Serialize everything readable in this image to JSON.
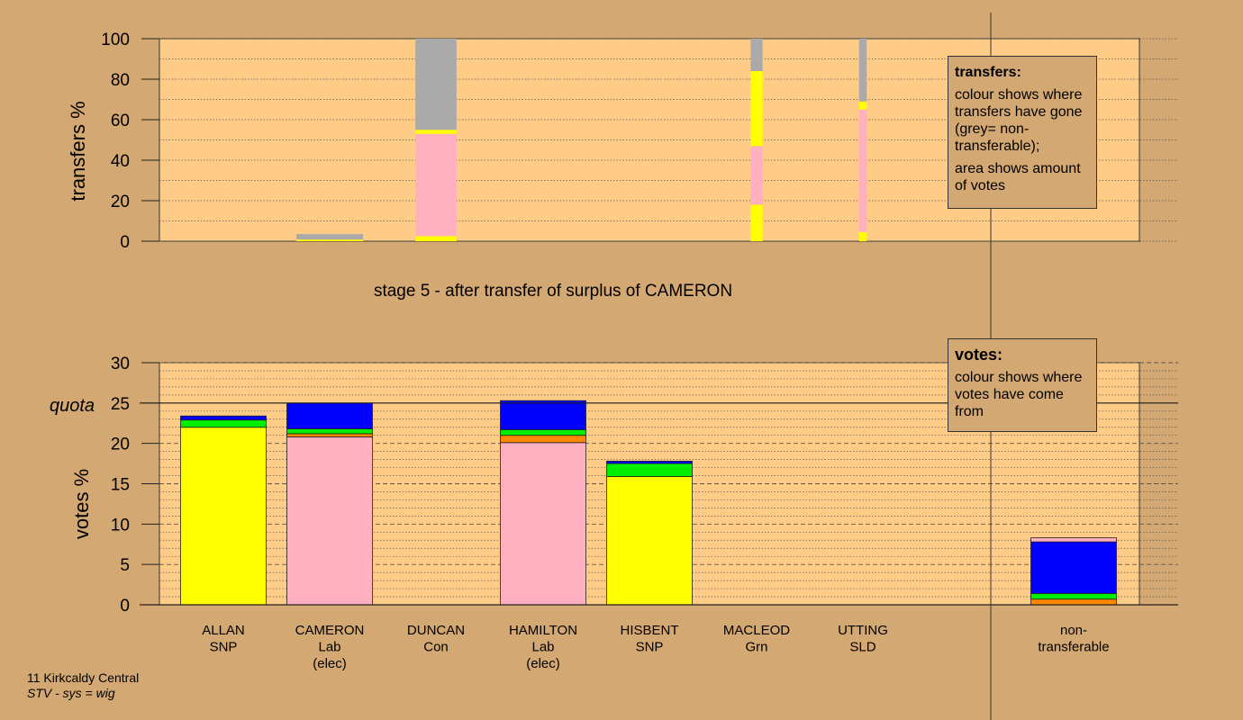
{
  "chart_data": [
    {
      "type": "bar",
      "subtype": "stacked",
      "ylabel": "transfers %",
      "ylim": [
        0,
        100
      ],
      "yticks": [
        0,
        20,
        40,
        60,
        80,
        100
      ],
      "categories": [
        "ALLAN SNP",
        "CAMERON Lab (elec)",
        "DUNCAN Con",
        "HAMILTON Lab (elec)",
        "HISBENT SNP",
        "MACLEOD Grn",
        "UTTING SLD"
      ],
      "segment_colors": {
        "yellow": "#ffff00",
        "pink": "#ffb0c0",
        "grey": "#aaaaaa"
      },
      "stacks": [
        [],
        [
          {
            "color": "#ffff00",
            "from": 0,
            "to": 0.8
          },
          {
            "color": "#aaaaaa",
            "from": 0.8,
            "to": 3.5
          }
        ],
        [
          {
            "color": "#ffff00",
            "from": 0,
            "to": 2.5
          },
          {
            "color": "#ffb0c0",
            "from": 2.5,
            "to": 53
          },
          {
            "color": "#ffff00",
            "from": 53,
            "to": 55
          },
          {
            "color": "#aaaaaa",
            "from": 55,
            "to": 100
          }
        ],
        [],
        [],
        [
          {
            "color": "#ffff00",
            "from": 0,
            "to": 18
          },
          {
            "color": "#ffb0c0",
            "from": 18,
            "to": 47
          },
          {
            "color": "#ffff00",
            "from": 47,
            "to": 84
          },
          {
            "color": "#aaaaaa",
            "from": 84,
            "to": 100
          }
        ],
        [
          {
            "color": "#ffff00",
            "from": 0,
            "to": 4.5
          },
          {
            "color": "#ffb0c0",
            "from": 4.5,
            "to": 65
          },
          {
            "color": "#ffff00",
            "from": 65,
            "to": 69
          },
          {
            "color": "#aaaaaa",
            "from": 69,
            "to": 100
          }
        ]
      ],
      "bar_width_relative": [
        0,
        0.78,
        0.48,
        0,
        0,
        0.14,
        0.09
      ]
    },
    {
      "type": "bar",
      "subtype": "stacked",
      "title": "stage 5 - after transfer of surplus of CAMERON",
      "ylabel": "votes %",
      "ylim": [
        0,
        30
      ],
      "yticks": [
        0,
        5,
        10,
        15,
        20,
        25,
        30
      ],
      "quota": 25,
      "quota_label": "quota",
      "categories": [
        "ALLAN SNP",
        "CAMERON Lab (elec)",
        "DUNCAN Con",
        "HAMILTON Lab (elec)",
        "HISBENT SNP",
        "MACLEOD Grn",
        "UTTING SLD",
        "non-transferable"
      ],
      "stacks": [
        [
          {
            "color": "#ffff00",
            "from": 0,
            "to": 22
          },
          {
            "color": "#00ee00",
            "from": 22,
            "to": 22.9
          },
          {
            "color": "#0000ff",
            "from": 22.9,
            "to": 23.4
          }
        ],
        [
          {
            "color": "#ffb0c0",
            "from": 0,
            "to": 20.8
          },
          {
            "color": "#ff8800",
            "from": 20.8,
            "to": 21.2
          },
          {
            "color": "#00ee00",
            "from": 21.2,
            "to": 21.8
          },
          {
            "color": "#0000ff",
            "from": 21.8,
            "to": 25
          }
        ],
        [],
        [
          {
            "color": "#ffb0c0",
            "from": 0,
            "to": 20.1
          },
          {
            "color": "#ff8800",
            "from": 20.1,
            "to": 21
          },
          {
            "color": "#00ee00",
            "from": 21,
            "to": 21.7
          },
          {
            "color": "#0000ff",
            "from": 21.7,
            "to": 25.3
          }
        ],
        [
          {
            "color": "#ffff00",
            "from": 0,
            "to": 15.9
          },
          {
            "color": "#00ee00",
            "from": 15.9,
            "to": 17.5
          },
          {
            "color": "#0000ff",
            "from": 17.5,
            "to": 17.8
          }
        ],
        [],
        [],
        [
          {
            "color": "#ff8800",
            "from": 0,
            "to": 0.7
          },
          {
            "color": "#00ee00",
            "from": 0.7,
            "to": 1.4
          },
          {
            "color": "#0000ff",
            "from": 1.4,
            "to": 7.8
          },
          {
            "color": "#ffb0c0",
            "from": 7.8,
            "to": 8.3
          }
        ]
      ]
    }
  ],
  "categories_display": [
    {
      "name": "ALLAN",
      "party": "SNP",
      "status": ""
    },
    {
      "name": "CAMERON",
      "party": "Lab",
      "status": "(elec)"
    },
    {
      "name": "DUNCAN",
      "party": "Con",
      "status": ""
    },
    {
      "name": "HAMILTON",
      "party": "Lab",
      "status": "(elec)"
    },
    {
      "name": "HISBENT",
      "party": "SNP",
      "status": ""
    },
    {
      "name": "MACLEOD",
      "party": "Grn",
      "status": ""
    },
    {
      "name": "UTTING",
      "party": "SLD",
      "status": ""
    },
    {
      "name": "non-",
      "party": "transferable",
      "status": ""
    }
  ],
  "legend_transfers": {
    "title": "transfers:",
    "line1": "colour shows where transfers have gone (grey= non-transferable);",
    "line2": "area shows amount of votes"
  },
  "legend_votes": {
    "title": "votes:",
    "line1": "colour shows where votes have come from"
  },
  "footer": {
    "place": "11 Kirkcaldy Central",
    "system": "STV - sys = wig"
  },
  "colors": {
    "background": "#d4a872",
    "plot_area": "#ffcc88"
  }
}
